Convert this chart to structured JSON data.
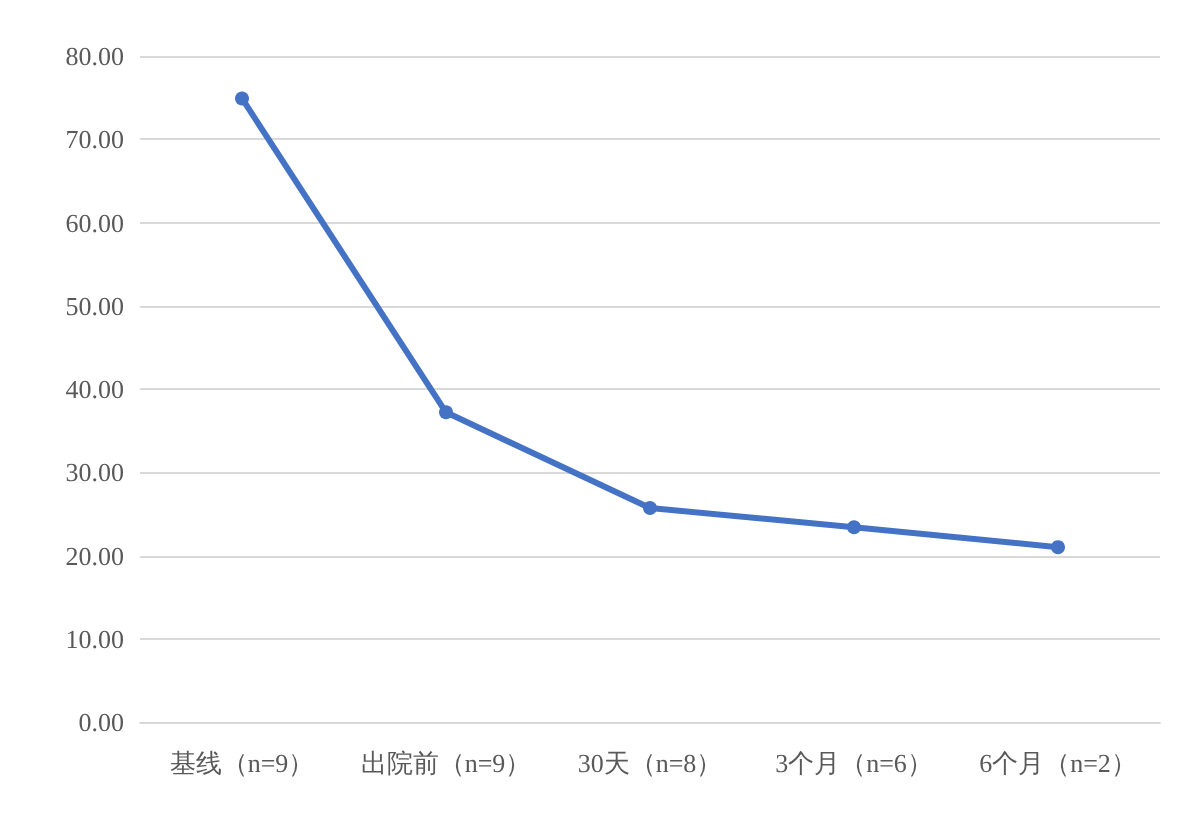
{
  "chart_data": {
    "type": "line",
    "categories": [
      "基线（n=9）",
      "出院前（n=9）",
      "30天（n=8）",
      "3个月（n=6）",
      "6个月（n=2）"
    ],
    "series": [
      {
        "color": "#4472c4",
        "values": [
          74.9,
          37.2,
          25.7,
          23.4,
          21.0
        ]
      }
    ],
    "ylim": [
      0,
      80
    ],
    "yticks": [
      {
        "value": 0,
        "label": "0.00"
      },
      {
        "value": 10,
        "label": "10.00"
      },
      {
        "value": 20,
        "label": "20.00"
      },
      {
        "value": 30,
        "label": "30.00"
      },
      {
        "value": 40,
        "label": "40.00"
      },
      {
        "value": 50,
        "label": "50.00"
      },
      {
        "value": 60,
        "label": "60.00"
      },
      {
        "value": 70,
        "label": "70.00"
      },
      {
        "value": 80,
        "label": "80.00"
      }
    ],
    "grid": "y",
    "marker": "circle",
    "line_style": "solid"
  }
}
